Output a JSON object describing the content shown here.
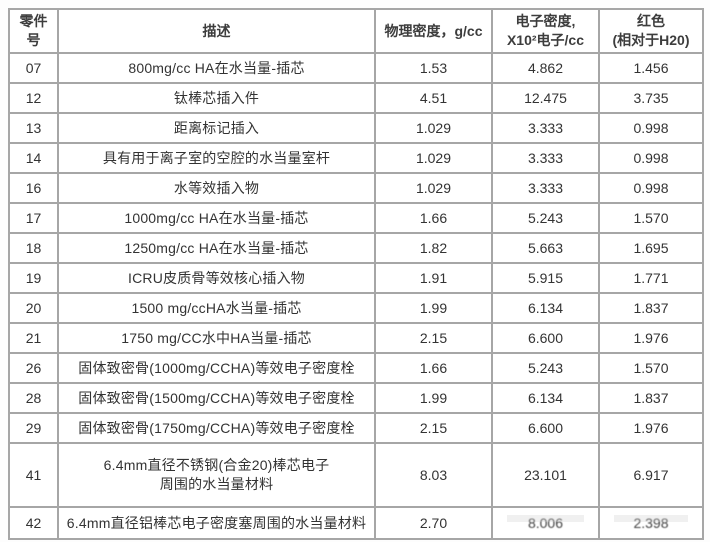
{
  "table": {
    "columns": {
      "part": "零件号",
      "desc": "描述",
      "density": "物理密度，g/cc",
      "electron": "电子密度,\nX10²电子/cc",
      "red": "红色\n(相对于H20)"
    },
    "rows": [
      {
        "part": "07",
        "desc": "800mg/cc HA在水当量-插芯",
        "density": "1.53",
        "electron": "4.862",
        "red": "1.456"
      },
      {
        "part": "12",
        "desc": "钛棒芯插入件",
        "density": "4.51",
        "electron": "12.475",
        "red": "3.735"
      },
      {
        "part": "13",
        "desc": "距离标记插入",
        "density": "1.029",
        "electron": "3.333",
        "red": "0.998"
      },
      {
        "part": "14",
        "desc": "具有用于离子室的空腔的水当量室杆",
        "density": "1.029",
        "electron": "3.333",
        "red": "0.998"
      },
      {
        "part": "16",
        "desc": "水等效插入物",
        "density": "1.029",
        "electron": "3.333",
        "red": "0.998"
      },
      {
        "part": "17",
        "desc": "1000mg/cc HA在水当量-插芯",
        "density": "1.66",
        "electron": "5.243",
        "red": "1.570"
      },
      {
        "part": "18",
        "desc": "1250mg/cc HA在水当量-插芯",
        "density": "1.82",
        "electron": "5.663",
        "red": "1.695"
      },
      {
        "part": "19",
        "desc": "ICRU皮质骨等效核心插入物",
        "density": "1.91",
        "electron": "5.915",
        "red": "1.771"
      },
      {
        "part": "20",
        "desc": "1500 mg/ccHA水当量-插芯",
        "density": "1.99",
        "electron": "6.134",
        "red": "1.837"
      },
      {
        "part": "21",
        "desc": "1750 mg/CC水中HA当量-插芯",
        "density": "2.15",
        "electron": "6.600",
        "red": "1.976"
      },
      {
        "part": "26",
        "desc": "固体致密骨(1000mg/CCHA)等效电子密度栓",
        "density": "1.66",
        "electron": "5.243",
        "red": "1.570"
      },
      {
        "part": "28",
        "desc": "固体致密骨(1500mg/CCHA)等效电子密度栓",
        "density": "1.99",
        "electron": "6.134",
        "red": "1.837"
      },
      {
        "part": "29",
        "desc": "固体致密骨(1750mg/CCHA)等效电子密度栓",
        "density": "2.15",
        "electron": "6.600",
        "red": "1.976"
      },
      {
        "part": "41",
        "desc": "6.4mm直径不锈钢(合金20)棒芯电子\n周围的水当量材料",
        "density": "8.03",
        "electron": "23.101",
        "red": "6.917"
      },
      {
        "part": "42",
        "desc": "6.4mm直径铝棒芯电子密度塞周围的水当量材料",
        "density": "2.70",
        "electron": "8.006",
        "red": "2.398"
      }
    ]
  }
}
